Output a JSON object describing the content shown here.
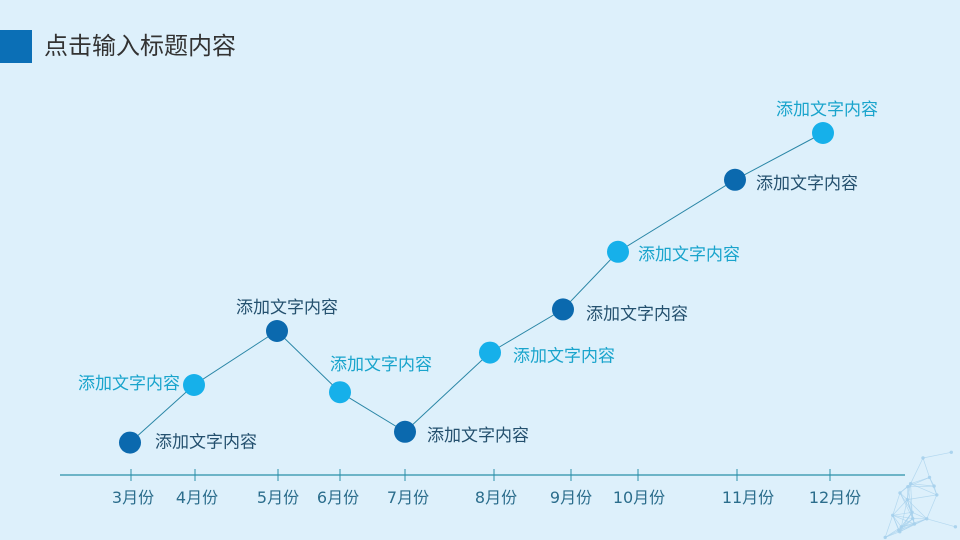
{
  "header": {
    "title": "点击输入标题内容"
  },
  "colors": {
    "background": "#ddf0fb",
    "accent": "#0b6fb6",
    "title_text": "#333333",
    "axis": "#2a8fa8",
    "line": "#2a86a6",
    "tick_label": "#2b6d8c",
    "decoration": "#a6d0ec"
  },
  "chart_data": {
    "type": "line",
    "categories": [
      "3月份",
      "4月份",
      "5月份",
      "6月份",
      "7月份",
      "8月份",
      "9月份",
      "10月份",
      "11月份",
      "12月份"
    ],
    "values": [
      9,
      25,
      40,
      23,
      12,
      34,
      46,
      62,
      82,
      95
    ],
    "point_labels": [
      "添加文字内容",
      "添加文字内容",
      "添加文字内容",
      "添加文字内容",
      "添加文字内容",
      "添加文字内容",
      "添加文字内容",
      "添加文字内容",
      "添加文字内容",
      "添加文字内容"
    ],
    "point_colors": [
      "#0b69ae",
      "#16b0ea",
      "#0b69ae",
      "#16b0ea",
      "#0b69ae",
      "#16b0ea",
      "#0b69ae",
      "#16b0ea",
      "#0b69ae",
      "#16b0ea"
    ],
    "label_colors": [
      "#24506e",
      "#19a4cc",
      "#24506e",
      "#19a4cc",
      "#24506e",
      "#19a4cc",
      "#24506e",
      "#19a4cc",
      "#24506e",
      "#19a4cc"
    ],
    "ylim": [
      0,
      100
    ],
    "grid": false,
    "show_y_axis": false
  }
}
